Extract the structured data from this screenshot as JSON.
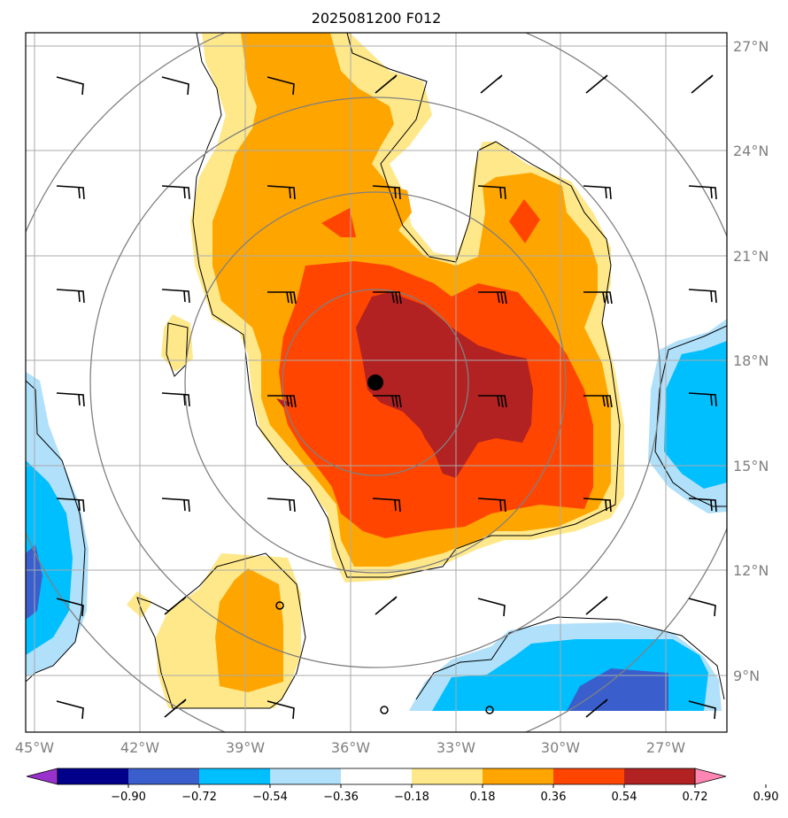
{
  "title": "2025081200 F012",
  "lat_labels": [
    "27°N",
    "24°N",
    "21°N",
    "18°N",
    "15°N",
    "12°N",
    "9°N"
  ],
  "lon_labels": [
    "45°W",
    "42°W",
    "39°W",
    "36°W",
    "33°W",
    "30°W",
    "27°W"
  ],
  "colorbar": {
    "tick_labels": [
      "−0.90",
      "−0.72",
      "−0.54",
      "−0.36",
      "−0.18",
      "0.18",
      "0.36",
      "0.54",
      "0.72",
      "0.90"
    ],
    "colors": [
      "#9932cc",
      "#00008b",
      "#3a5fcd",
      "#00bfff",
      "#b0e0fa",
      "#ffffff",
      "#ffe88a",
      "#ffa500",
      "#ff4500",
      "#b22222",
      "#ff85b3"
    ]
  },
  "storm_center": {
    "lon": -35.3,
    "lat": 17.4
  },
  "colors": {
    "grid": "#aaaaaa",
    "range_rings": "#808080",
    "coastline": "#000000"
  }
}
